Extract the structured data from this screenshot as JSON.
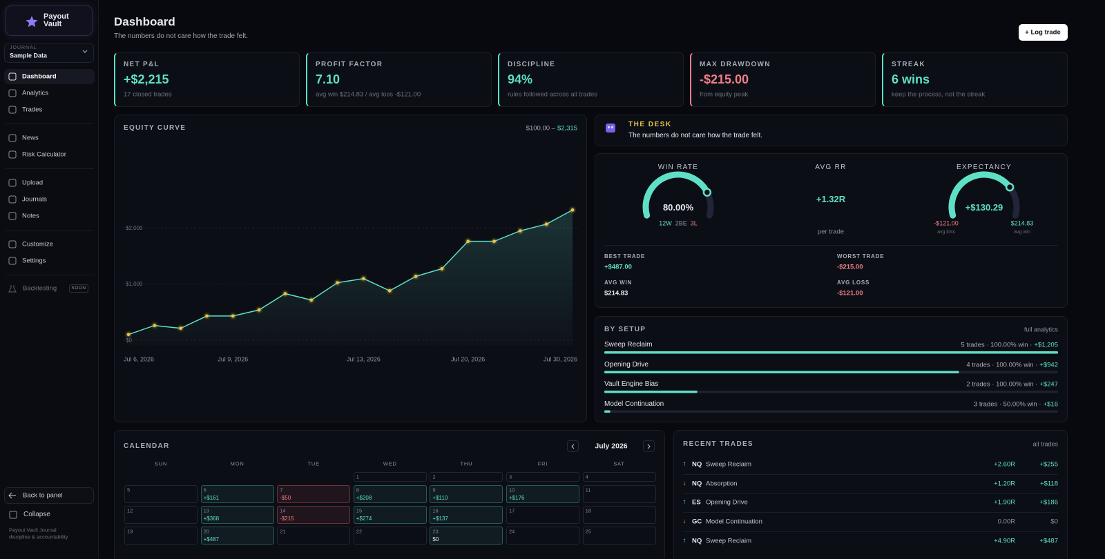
{
  "sidebar": {
    "brand": "Payout Vault",
    "journal_label": "JOURNAL",
    "journal_name": "Sample Data",
    "nav": [
      [
        "Dashboard",
        "Analytics",
        "Trades"
      ],
      [
        "News",
        "Risk Calculator"
      ],
      [
        "Upload",
        "Journals",
        "Notes"
      ],
      [
        "Customize",
        "Settings"
      ]
    ],
    "backtesting": "Backtesting",
    "soon": "SOON",
    "back": "Back to panel",
    "collapse": "Collapse",
    "footer": [
      "Payout Vault Journal",
      "discipline & accountability"
    ]
  },
  "header": {
    "title": "Dashboard",
    "subtitle": "The numbers do not care how the trade felt.",
    "button": "+ Log trade"
  },
  "stats": [
    {
      "label": "NET P&L",
      "value": "+$2,215",
      "note": "17 closed trades"
    },
    {
      "label": "PROFIT FACTOR",
      "value": "7.10",
      "note": "avg win $214.83 / avg loss -$121.00"
    },
    {
      "label": "DISCIPLINE",
      "value": "94%",
      "note": "rules followed across all trades"
    },
    {
      "label": "MAX DRAWDOWN",
      "value": "-$215.00",
      "note": "from equity peak"
    },
    {
      "label": "STREAK",
      "value": "6 wins",
      "note": "keep the process, not the streak"
    }
  ],
  "equity": {
    "title": "EQUITY CURVE",
    "range_from": "$100.00 –",
    "range_to": "$2,315",
    "values": [
      100,
      261,
      211,
      429,
      429,
      537,
      827,
      713,
      1021,
      1095,
      879,
      1134,
      1271,
      1758,
      1758,
      1945,
      2063,
      2315
    ],
    "ylim": [
      -100,
      3600
    ],
    "yticks": [
      {
        "value": 0,
        "label": "$0"
      },
      {
        "value": 1000,
        "label": "$1,000"
      },
      {
        "value": 2000,
        "label": "$2,000"
      }
    ],
    "xticks": [
      {
        "value": 0,
        "label": "Jul 6, 2026"
      },
      {
        "value": 4,
        "label": "Jul 9, 2026"
      },
      {
        "value": 9,
        "label": "Jul 13, 2026"
      },
      {
        "value": 13,
        "label": "Jul 20, 2026"
      },
      {
        "value": 17,
        "label": "Jul 30, 2026"
      }
    ],
    "grid": true
  },
  "desk": {
    "title": "THE DESK",
    "text": "The numbers do not care how the trade felt."
  },
  "gauges": {
    "win_rate": {
      "title": "WIN RATE",
      "value": 80,
      "label": "80.00%",
      "range": [
        0,
        100
      ],
      "record": [
        "12W",
        "2BE",
        "3L"
      ]
    },
    "avg_rr": {
      "title": "AVG RR",
      "value": "+1.32R",
      "note": "per trade"
    },
    "expectancy": {
      "title": "EXPECTANCY",
      "value": 130.29,
      "label": "+$130.29",
      "low": {
        "value": -121,
        "label": "-$121.00",
        "note": "avg loss"
      },
      "high": {
        "value": 214.83,
        "label": "$214.83",
        "note": "avg win"
      }
    }
  },
  "extremes": [
    {
      "label": "BEST TRADE",
      "value": "+$487.00"
    },
    {
      "label": "WORST TRADE",
      "value": "-$215.00"
    },
    {
      "label": "AVG WIN",
      "value": "$214.83"
    },
    {
      "label": "AVG LOSS",
      "value": "-$121.00"
    }
  ],
  "setups": {
    "title": "BY SETUP",
    "link": "full analytics",
    "rows": [
      {
        "name": "Sweep Reclaim",
        "summary": "5 trades · 100.00% win ·",
        "pnl": {
          "value": 1205,
          "label": "+$1,205"
        }
      },
      {
        "name": "Opening Drive",
        "summary": "4 trades · 100.00% win ·",
        "pnl": {
          "value": 942,
          "label": "+$942"
        }
      },
      {
        "name": "Vault Engine Bias",
        "summary": "2 trades · 100.00% win ·",
        "pnl": {
          "value": 247,
          "label": "+$247"
        }
      },
      {
        "name": "Model Continuation",
        "summary": "3 trades · 50.00% win ·",
        "pnl": {
          "value": 16,
          "label": "+$16"
        }
      }
    ]
  },
  "calendar": {
    "title": "CALENDAR",
    "month": "July 2026",
    "weekdays": [
      "SUN",
      "MON",
      "TUE",
      "WED",
      "THU",
      "FRI",
      "SAT"
    ],
    "weeks": [
      [
        null,
        null,
        null,
        {
          "day": 1
        },
        {
          "day": 2
        },
        {
          "day": 3
        },
        {
          "day": 4
        }
      ],
      [
        {
          "day": 5
        },
        {
          "day": 6,
          "pnl": "+$161"
        },
        {
          "day": 7,
          "pnl": "-$50"
        },
        {
          "day": 8,
          "pnl": "+$208"
        },
        {
          "day": 9,
          "pnl": "+$110"
        },
        {
          "day": 10,
          "pnl": "+$176"
        },
        {
          "day": 11
        }
      ],
      [
        {
          "day": 12
        },
        {
          "day": 13,
          "pnl": "+$368"
        },
        {
          "day": 14,
          "pnl": "-$215"
        },
        {
          "day": 15,
          "pnl": "+$274"
        },
        {
          "day": 16,
          "pnl": "+$137"
        },
        {
          "day": 17
        },
        {
          "day": 18
        }
      ],
      [
        {
          "day": 19
        },
        {
          "day": 20,
          "pnl": "+$487"
        },
        {
          "day": 21
        },
        {
          "day": 22
        },
        {
          "day": 23,
          "pnl": "$0"
        },
        {
          "day": 24
        },
        {
          "day": 25
        }
      ]
    ]
  },
  "recent": {
    "title": "RECENT TRADES",
    "link": "all trades",
    "rows": [
      {
        "dir": "↑",
        "symbol": "NQ",
        "setup": "Sweep Reclaim",
        "r": "+2.60R",
        "pnl": "+$255"
      },
      {
        "dir": "↓",
        "symbol": "NQ",
        "setup": "Absorption",
        "r": "+1.20R",
        "pnl": "+$118"
      },
      {
        "dir": "↑",
        "symbol": "ES",
        "setup": "Opening Drive",
        "r": "+1.90R",
        "pnl": "+$186"
      },
      {
        "dir": "↓",
        "symbol": "GC",
        "setup": "Model Continuation",
        "r": "0.00R",
        "pnl": "$0"
      },
      {
        "dir": "↑",
        "symbol": "NQ",
        "setup": "Sweep Reclaim",
        "r": "+4.90R",
        "pnl": "+$487"
      }
    ]
  }
}
